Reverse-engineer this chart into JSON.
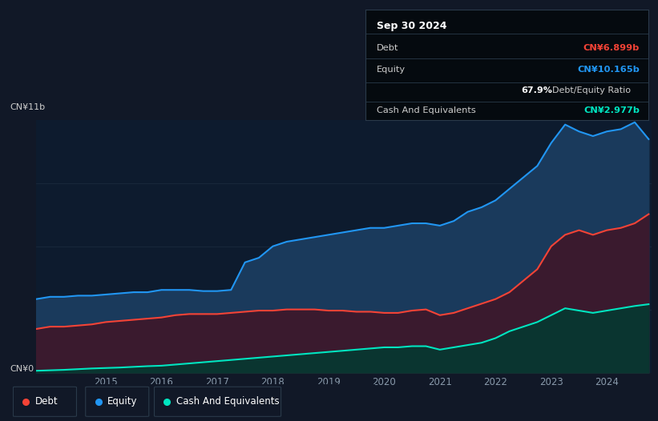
{
  "bg_color": "#111827",
  "plot_bg_color": "#0d1b2e",
  "tooltip": {
    "date": "Sep 30 2024",
    "debt_label": "Debt",
    "debt_value": "CN¥6.899b",
    "equity_label": "Equity",
    "equity_value": "CN¥10.165b",
    "ratio_value": "67.9%",
    "ratio_label": "Debt/Equity Ratio",
    "cash_label": "Cash And Equivalents",
    "cash_value": "CN¥2.977b"
  },
  "ylabel_top": "CN¥11b",
  "ylabel_bottom": "CN¥0",
  "years": [
    2013.75,
    2014.0,
    2014.25,
    2014.5,
    2014.75,
    2015.0,
    2015.25,
    2015.5,
    2015.75,
    2016.0,
    2016.25,
    2016.5,
    2016.75,
    2017.0,
    2017.25,
    2017.5,
    2017.75,
    2018.0,
    2018.25,
    2018.5,
    2018.75,
    2019.0,
    2019.25,
    2019.5,
    2019.75,
    2020.0,
    2020.25,
    2020.5,
    2020.75,
    2021.0,
    2021.25,
    2021.5,
    2021.75,
    2022.0,
    2022.25,
    2022.5,
    2022.75,
    2023.0,
    2023.25,
    2023.5,
    2023.75,
    2024.0,
    2024.25,
    2024.5,
    2024.75
  ],
  "equity": [
    3.2,
    3.3,
    3.3,
    3.35,
    3.35,
    3.4,
    3.45,
    3.5,
    3.5,
    3.6,
    3.6,
    3.6,
    3.55,
    3.55,
    3.6,
    4.8,
    5.0,
    5.5,
    5.7,
    5.8,
    5.9,
    6.0,
    6.1,
    6.2,
    6.3,
    6.3,
    6.4,
    6.5,
    6.5,
    6.4,
    6.6,
    7.0,
    7.2,
    7.5,
    8.0,
    8.5,
    9.0,
    10.0,
    10.8,
    10.5,
    10.3,
    10.5,
    10.6,
    10.9,
    10.165
  ],
  "debt": [
    1.9,
    2.0,
    2.0,
    2.05,
    2.1,
    2.2,
    2.25,
    2.3,
    2.35,
    2.4,
    2.5,
    2.55,
    2.55,
    2.55,
    2.6,
    2.65,
    2.7,
    2.7,
    2.75,
    2.75,
    2.75,
    2.7,
    2.7,
    2.65,
    2.65,
    2.6,
    2.6,
    2.7,
    2.75,
    2.5,
    2.6,
    2.8,
    3.0,
    3.2,
    3.5,
    4.0,
    4.5,
    5.5,
    6.0,
    6.2,
    6.0,
    6.2,
    6.3,
    6.5,
    6.899
  ],
  "cash": [
    0.08,
    0.1,
    0.12,
    0.15,
    0.18,
    0.2,
    0.22,
    0.25,
    0.28,
    0.3,
    0.35,
    0.4,
    0.45,
    0.5,
    0.55,
    0.6,
    0.65,
    0.7,
    0.75,
    0.8,
    0.85,
    0.9,
    0.95,
    1.0,
    1.05,
    1.1,
    1.1,
    1.15,
    1.15,
    1.0,
    1.1,
    1.2,
    1.3,
    1.5,
    1.8,
    2.0,
    2.2,
    2.5,
    2.8,
    2.7,
    2.6,
    2.7,
    2.8,
    2.9,
    2.977
  ],
  "equity_color": "#2196f3",
  "debt_color": "#f44336",
  "cash_color": "#00e5c0",
  "equity_fill": "#1a3a5c",
  "debt_fill": "#3a1a2e",
  "cash_fill": "#0a3530",
  "grid_color": "#1e2d40",
  "tick_color": "#8899aa",
  "text_color": "#cccccc",
  "white": "#ffffff",
  "legend_bg": "#111827",
  "legend_border": "#2a3a4a",
  "tooltip_bg": "#050a0f",
  "tooltip_border": "#2a3a4a",
  "xtick_years": [
    2015,
    2016,
    2017,
    2018,
    2019,
    2020,
    2021,
    2022,
    2023,
    2024
  ],
  "ylim": [
    0,
    11
  ]
}
